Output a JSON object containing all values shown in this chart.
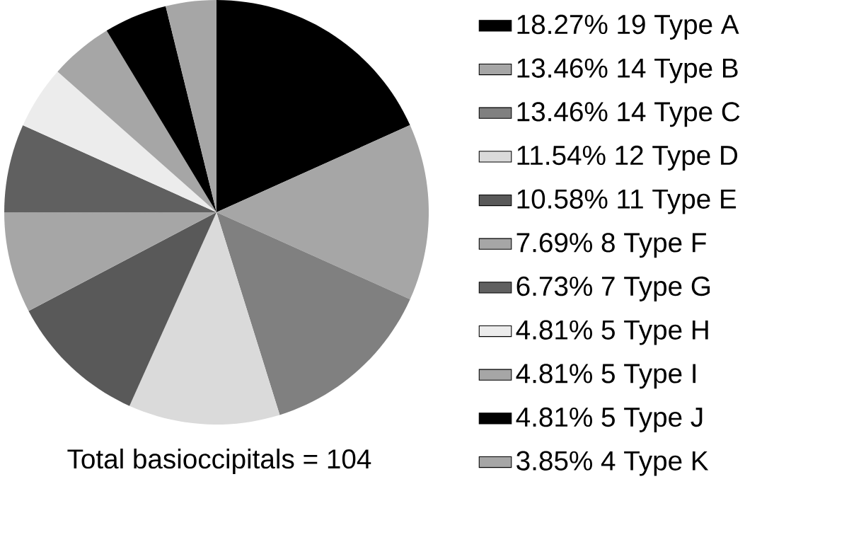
{
  "chart_data": {
    "type": "pie",
    "categories": [
      "18.27%  19 Type A",
      "13.46%  14 Type B",
      "13.46%  14 Type C",
      "11.54%  12 Type D",
      "10.58%  11 Type E",
      "7.69%  8 Type F",
      "6.73%  7 Type G",
      "4.81%  5 Type H",
      "4.81%  5 Type I",
      "4.81%  5 Type J",
      "3.85%  4 Type K"
    ],
    "values": [
      18.27,
      13.46,
      13.46,
      11.54,
      10.58,
      7.69,
      6.73,
      4.81,
      4.81,
      4.81,
      3.85
    ],
    "colors": [
      "#000000",
      "#a6a6a6",
      "#808080",
      "#dadada",
      "#595959",
      "#a6a6a6",
      "#606060",
      "#ececec",
      "#a6a6a6",
      "#000000",
      "#a6a6a6"
    ],
    "legend": "right",
    "annotations": [
      "Total basioccipitals = 104"
    ]
  }
}
